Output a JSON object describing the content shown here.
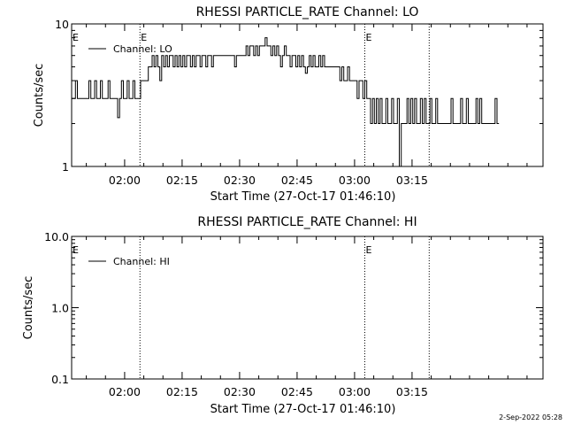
{
  "footer": {
    "timestamp": "2-Sep-2022 05:28"
  },
  "chart_data": [
    {
      "type": "line",
      "title": "RHESSI PARTICLE_RATE Channel: LO",
      "xlabel": "Start Time (27-Oct-17 01:46:10)",
      "ylabel": "Counts/sec",
      "yscale": "log",
      "ylim": [
        1,
        10
      ],
      "y_ticks": [
        "1",
        "10"
      ],
      "xlim_minutes": [
        0,
        123
      ],
      "x_ticks": [
        {
          "label": "02:00",
          "min": 13.83
        },
        {
          "label": "02:15",
          "min": 28.83
        },
        {
          "label": "02:30",
          "min": 43.83
        },
        {
          "label": "02:45",
          "min": 58.83
        },
        {
          "label": "03:00",
          "min": 73.83
        },
        {
          "label": "03:15",
          "min": 88.83
        }
      ],
      "markers": [
        {
          "min": 17.83,
          "label": "E"
        },
        {
          "min": 76.5,
          "label": "E"
        },
        {
          "min": 93.3,
          "label": ""
        }
      ],
      "corner_label": "E",
      "legend": "Channel: LO",
      "series": [
        {
          "name": "Channel: LO",
          "points": [
            [
              0,
              3
            ],
            [
              0.5,
              3
            ],
            [
              1,
              4
            ],
            [
              1.5,
              3
            ],
            [
              2,
              3
            ],
            [
              2.5,
              3
            ],
            [
              3,
              3
            ],
            [
              3.5,
              3
            ],
            [
              4,
              3
            ],
            [
              4.5,
              4
            ],
            [
              5,
              3
            ],
            [
              5.5,
              3
            ],
            [
              6,
              4
            ],
            [
              6.5,
              3
            ],
            [
              7,
              3
            ],
            [
              7.5,
              4
            ],
            [
              8,
              3
            ],
            [
              8.5,
              3
            ],
            [
              9,
              3
            ],
            [
              9.5,
              4
            ],
            [
              10,
              3
            ],
            [
              10.5,
              3
            ],
            [
              11,
              3
            ],
            [
              11.5,
              3
            ],
            [
              12,
              2.2
            ],
            [
              12.5,
              3
            ],
            [
              13,
              4
            ],
            [
              13.5,
              3
            ],
            [
              14,
              3
            ],
            [
              14.5,
              4
            ],
            [
              15,
              3
            ],
            [
              15.5,
              3
            ],
            [
              16,
              4
            ],
            [
              16.5,
              3
            ],
            [
              17,
              3
            ],
            [
              17.5,
              3
            ],
            [
              18,
              4
            ],
            [
              18.5,
              4
            ],
            [
              19,
              4
            ],
            [
              19.5,
              4
            ],
            [
              20,
              5
            ],
            [
              20.5,
              5
            ],
            [
              21,
              6
            ],
            [
              21.5,
              5
            ],
            [
              22,
              6
            ],
            [
              22.5,
              5
            ],
            [
              23,
              4
            ],
            [
              23.5,
              6
            ],
            [
              24,
              5
            ],
            [
              24.5,
              6
            ],
            [
              25,
              5
            ],
            [
              25.5,
              6
            ],
            [
              26,
              6
            ],
            [
              26.5,
              5
            ],
            [
              27,
              6
            ],
            [
              27.5,
              5
            ],
            [
              28,
              6
            ],
            [
              28.5,
              5
            ],
            [
              29,
              6
            ],
            [
              29.5,
              5
            ],
            [
              30,
              6
            ],
            [
              30.5,
              6
            ],
            [
              31,
              5
            ],
            [
              31.5,
              6
            ],
            [
              32,
              5
            ],
            [
              32.5,
              6
            ],
            [
              33,
              6
            ],
            [
              33.5,
              5
            ],
            [
              34,
              6
            ],
            [
              34.5,
              6
            ],
            [
              35,
              5
            ],
            [
              35.5,
              6
            ],
            [
              36,
              6
            ],
            [
              36.5,
              5
            ],
            [
              37,
              6
            ],
            [
              37.5,
              6
            ],
            [
              38,
              6
            ],
            [
              38.5,
              6
            ],
            [
              39,
              6
            ],
            [
              39.5,
              6
            ],
            [
              40,
              6
            ],
            [
              40.5,
              6
            ],
            [
              41,
              6
            ],
            [
              41.5,
              6
            ],
            [
              42,
              6
            ],
            [
              42.5,
              5
            ],
            [
              43,
              6
            ],
            [
              43.5,
              6
            ],
            [
              44,
              6
            ],
            [
              44.5,
              6
            ],
            [
              45,
              6
            ],
            [
              45.5,
              7
            ],
            [
              46,
              6
            ],
            [
              46.5,
              7
            ],
            [
              47,
              7
            ],
            [
              47.5,
              6
            ],
            [
              48,
              7
            ],
            [
              48.5,
              6
            ],
            [
              49,
              7
            ],
            [
              49.5,
              7
            ],
            [
              50,
              7
            ],
            [
              50.5,
              8
            ],
            [
              51,
              7
            ],
            [
              51.5,
              7
            ],
            [
              52,
              6
            ],
            [
              52.5,
              7
            ],
            [
              53,
              6
            ],
            [
              53.5,
              7
            ],
            [
              54,
              6
            ],
            [
              54.5,
              5
            ],
            [
              55,
              6
            ],
            [
              55.5,
              7
            ],
            [
              56,
              6
            ],
            [
              56.5,
              6
            ],
            [
              57,
              5
            ],
            [
              57.5,
              6
            ],
            [
              58,
              6
            ],
            [
              58.5,
              5
            ],
            [
              59,
              6
            ],
            [
              59.5,
              5
            ],
            [
              60,
              6
            ],
            [
              60.5,
              5
            ],
            [
              61,
              4.5
            ],
            [
              61.5,
              5
            ],
            [
              62,
              6
            ],
            [
              62.5,
              5
            ],
            [
              63,
              6
            ],
            [
              63.5,
              5
            ],
            [
              64,
              5
            ],
            [
              64.5,
              6
            ],
            [
              65,
              5
            ],
            [
              65.5,
              6
            ],
            [
              66,
              5
            ],
            [
              66.5,
              5
            ],
            [
              67,
              5
            ],
            [
              67.5,
              5
            ],
            [
              68,
              5
            ],
            [
              68.5,
              5
            ],
            [
              69,
              5
            ],
            [
              69.5,
              5
            ],
            [
              70,
              4
            ],
            [
              70.5,
              5
            ],
            [
              71,
              4
            ],
            [
              71.5,
              4
            ],
            [
              72,
              5
            ],
            [
              72.5,
              4
            ],
            [
              73,
              4
            ],
            [
              73.5,
              4
            ],
            [
              74,
              4
            ],
            [
              74.5,
              3
            ],
            [
              75,
              4
            ],
            [
              75.5,
              4
            ],
            [
              76,
              3
            ],
            [
              76.5,
              4
            ],
            [
              77,
              3
            ],
            [
              77.5,
              3
            ],
            [
              78,
              2
            ],
            [
              78.5,
              3
            ],
            [
              79,
              2
            ],
            [
              79.5,
              3
            ],
            [
              80,
              2
            ],
            [
              80.5,
              3
            ],
            [
              81,
              2
            ],
            [
              81.5,
              2
            ],
            [
              82,
              3
            ],
            [
              82.5,
              2
            ],
            [
              83,
              2
            ],
            [
              83.5,
              3
            ],
            [
              84,
              2
            ],
            [
              84.5,
              2
            ],
            [
              85,
              3
            ],
            [
              85.5,
              1
            ],
            [
              86,
              2
            ],
            [
              86.5,
              2
            ],
            [
              87,
              2
            ],
            [
              87.5,
              3
            ],
            [
              88,
              2
            ],
            [
              88.5,
              3
            ],
            [
              89,
              2
            ],
            [
              89.5,
              3
            ],
            [
              90,
              2
            ],
            [
              90.5,
              2
            ],
            [
              91,
              3
            ],
            [
              91.5,
              2
            ],
            [
              92,
              3
            ],
            [
              92.5,
              2
            ],
            [
              93,
              2
            ],
            [
              93.5,
              3
            ],
            [
              94,
              2
            ],
            [
              94.5,
              2
            ],
            [
              95,
              3
            ],
            [
              95.5,
              2
            ],
            [
              96,
              2
            ],
            [
              96.5,
              2
            ],
            [
              97,
              2
            ],
            [
              97.5,
              2
            ],
            [
              98,
              2
            ],
            [
              98.5,
              2
            ],
            [
              99,
              3
            ],
            [
              99.5,
              2
            ],
            [
              100,
              2
            ],
            [
              100.5,
              2
            ],
            [
              101,
              2
            ],
            [
              101.5,
              3
            ],
            [
              102,
              2
            ],
            [
              102.5,
              2
            ],
            [
              103,
              3
            ],
            [
              103.5,
              2
            ],
            [
              104,
              2
            ],
            [
              104.5,
              2
            ],
            [
              105,
              2
            ],
            [
              105.5,
              3
            ],
            [
              106,
              2
            ],
            [
              106.5,
              3
            ],
            [
              107,
              2
            ],
            [
              107.5,
              2
            ],
            [
              108,
              2
            ],
            [
              108.5,
              2
            ],
            [
              109,
              2
            ],
            [
              109.5,
              2
            ],
            [
              110,
              2
            ],
            [
              110.5,
              3
            ],
            [
              111,
              2
            ],
            [
              111.5,
              2
            ]
          ]
        }
      ]
    },
    {
      "type": "line",
      "title": "RHESSI PARTICLE_RATE Channel: HI",
      "xlabel": "Start Time (27-Oct-17 01:46:10)",
      "ylabel": "Counts/sec",
      "yscale": "log",
      "ylim": [
        0.1,
        10
      ],
      "y_ticks": [
        "0.1",
        "1.0",
        "10.0"
      ],
      "xlim_minutes": [
        0,
        123
      ],
      "x_ticks": [
        {
          "label": "02:00",
          "min": 13.83
        },
        {
          "label": "02:15",
          "min": 28.83
        },
        {
          "label": "02:30",
          "min": 43.83
        },
        {
          "label": "02:45",
          "min": 58.83
        },
        {
          "label": "03:00",
          "min": 73.83
        },
        {
          "label": "03:15",
          "min": 88.83
        }
      ],
      "markers": [
        {
          "min": 17.83,
          "label": ""
        },
        {
          "min": 76.5,
          "label": "E"
        },
        {
          "min": 93.3,
          "label": ""
        }
      ],
      "corner_label": "E",
      "legend": "Channel: HI",
      "series": [
        {
          "name": "Channel: HI",
          "points": []
        }
      ]
    }
  ]
}
